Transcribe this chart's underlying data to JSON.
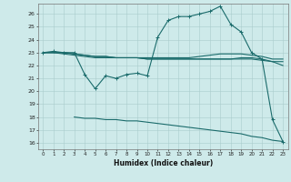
{
  "xlabel": "Humidex (Indice chaleur)",
  "x_ticks": [
    0,
    1,
    2,
    3,
    4,
    5,
    6,
    7,
    8,
    9,
    10,
    11,
    12,
    13,
    14,
    15,
    16,
    17,
    18,
    19,
    20,
    21,
    22,
    23
  ],
  "ylim": [
    15.5,
    26.8
  ],
  "xlim": [
    -0.5,
    23.5
  ],
  "yticks": [
    16,
    17,
    18,
    19,
    20,
    21,
    22,
    23,
    24,
    25,
    26
  ],
  "bg_color": "#ceeaea",
  "grid_color": "#aacccc",
  "line_color": "#1a6b6b",
  "line1_x": [
    0,
    1,
    2,
    3,
    4,
    5,
    6,
    7,
    8,
    9,
    10,
    11,
    12,
    13,
    14,
    15,
    16,
    17,
    18,
    19,
    20,
    21,
    22,
    23
  ],
  "line1_y": [
    23.0,
    23.1,
    23.0,
    23.0,
    21.3,
    20.2,
    21.2,
    21.0,
    21.3,
    21.4,
    21.2,
    24.2,
    25.5,
    25.8,
    25.8,
    26.0,
    26.2,
    26.6,
    25.2,
    24.6,
    23.0,
    22.5,
    17.8,
    16.1
  ],
  "line2_x": [
    0,
    1,
    2,
    3,
    4,
    5,
    6,
    7,
    8,
    9,
    10,
    11,
    12,
    13,
    14,
    15,
    16,
    17,
    18,
    19,
    20,
    21,
    22,
    23
  ],
  "line2_y": [
    23.0,
    23.0,
    22.9,
    22.8,
    22.7,
    22.6,
    22.6,
    22.6,
    22.6,
    22.6,
    22.6,
    22.6,
    22.6,
    22.6,
    22.6,
    22.7,
    22.8,
    22.9,
    22.9,
    22.9,
    22.8,
    22.7,
    22.5,
    22.5
  ],
  "line3_x": [
    0,
    1,
    2,
    3,
    4,
    5,
    6,
    7,
    8,
    9,
    10,
    11,
    12,
    13,
    14,
    15,
    16,
    17,
    18,
    19,
    20,
    21,
    22,
    23
  ],
  "line3_y": [
    23.0,
    23.0,
    23.0,
    22.9,
    22.8,
    22.7,
    22.7,
    22.6,
    22.6,
    22.6,
    22.5,
    22.5,
    22.5,
    22.5,
    22.5,
    22.5,
    22.5,
    22.5,
    22.5,
    22.6,
    22.6,
    22.5,
    22.3,
    22.3
  ],
  "line4_x": [
    0,
    1,
    2,
    3,
    4,
    5,
    6,
    7,
    8,
    9,
    10,
    11,
    12,
    13,
    14,
    15,
    16,
    17,
    18,
    19,
    20,
    21,
    22,
    23
  ],
  "line4_y": [
    23.0,
    23.0,
    23.0,
    22.9,
    22.8,
    22.7,
    22.7,
    22.6,
    22.6,
    22.6,
    22.5,
    22.5,
    22.5,
    22.5,
    22.5,
    22.5,
    22.5,
    22.5,
    22.5,
    22.5,
    22.5,
    22.4,
    22.3,
    22.0
  ],
  "line5_x": [
    3,
    4,
    5,
    6,
    7,
    8,
    9,
    10,
    11,
    12,
    13,
    14,
    15,
    16,
    17,
    18,
    19,
    20,
    21,
    22,
    23
  ],
  "line5_y": [
    18.0,
    17.9,
    17.9,
    17.8,
    17.8,
    17.7,
    17.7,
    17.6,
    17.5,
    17.4,
    17.3,
    17.2,
    17.1,
    17.0,
    16.9,
    16.8,
    16.7,
    16.5,
    16.4,
    16.2,
    16.1
  ]
}
